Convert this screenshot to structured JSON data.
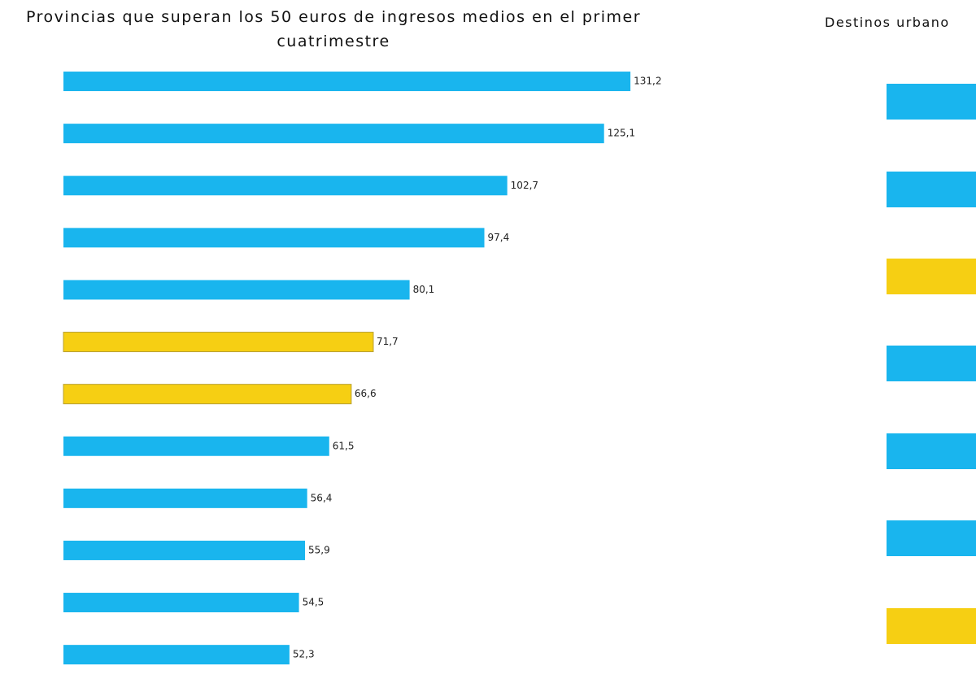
{
  "chart_data": [
    {
      "type": "barh",
      "title": "Provincias que superan los 50 euros de ingresos medios en el primer cuatrimestre",
      "categories": [
        null,
        null,
        null,
        null,
        null,
        null,
        null,
        null,
        null,
        null,
        null,
        null
      ],
      "values": [
        131.2,
        125.1,
        102.7,
        97.4,
        80.1,
        71.7,
        66.6,
        61.5,
        56.4,
        55.9,
        54.5,
        52.3
      ],
      "value_labels": [
        "131,2",
        "125,1",
        "102,7",
        "97,4",
        "80,1",
        "71,7",
        "66,6",
        "61,5",
        "56,4",
        "55,9",
        "54,5",
        "52,3"
      ],
      "colors": [
        "#19b5ee",
        "#19b5ee",
        "#19b5ee",
        "#19b5ee",
        "#19b5ee",
        "#f6cf13",
        "#f6cf13",
        "#19b5ee",
        "#19b5ee",
        "#19b5ee",
        "#19b5ee",
        "#19b5ee"
      ],
      "xlim": [
        0,
        150
      ]
    },
    {
      "type": "cropped",
      "title": "Destinos urbano"
    }
  ]
}
